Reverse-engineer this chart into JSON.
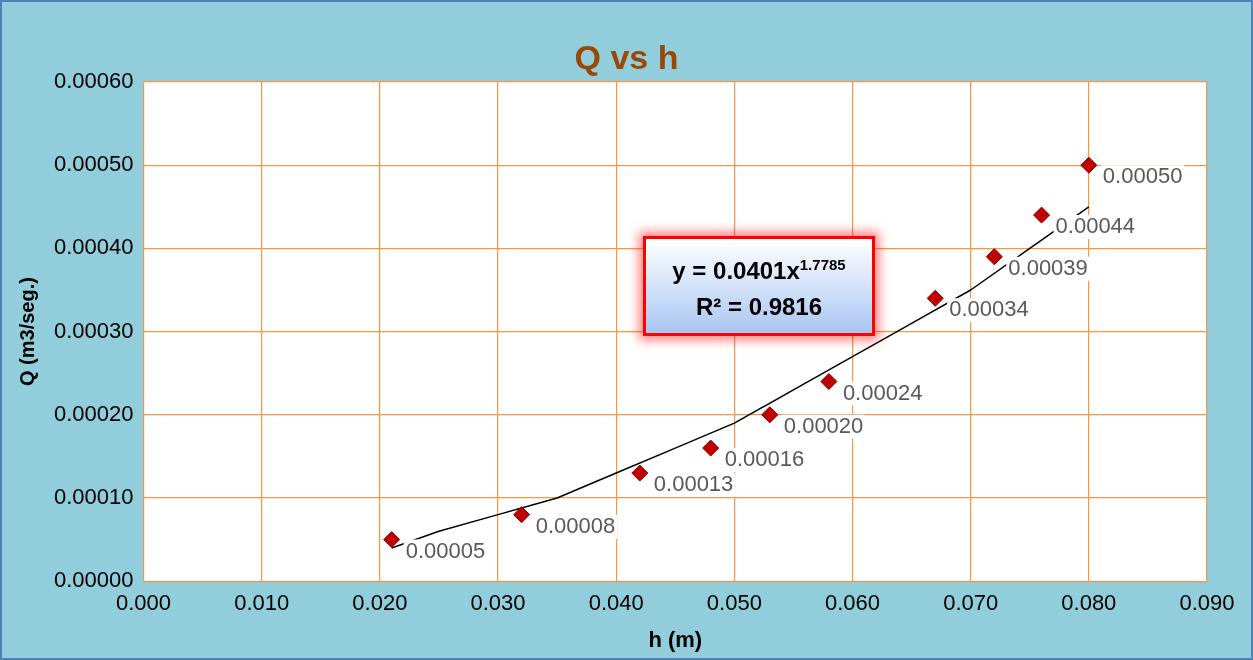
{
  "chart_data": {
    "type": "scatter",
    "title": "Q vs h",
    "xlabel": "h (m)",
    "ylabel": "Q (m3/seg.)",
    "series": [
      {
        "type": "scatter",
        "color": "#c00000",
        "marker": "diamond",
        "x": [
          0.021,
          0.032,
          0.042,
          0.048,
          0.053,
          0.058,
          0.067,
          0.072,
          0.076,
          0.08
        ],
        "values": [
          5e-05,
          8e-05,
          0.00013,
          0.00016,
          0.0002,
          0.00024,
          0.00034,
          0.00039,
          0.00044,
          0.0005
        ],
        "value_labels": [
          "0.00005",
          "0.00008",
          "0.00013",
          "0.00016",
          "0.00020",
          "0.00024",
          "0.00034",
          "0.00039",
          "0.00044",
          "0.00050"
        ]
      },
      {
        "type": "line",
        "color": "#000000",
        "marker": "none",
        "line_style": "solid",
        "x": [
          0.021,
          0.025,
          0.03,
          0.035,
          0.04,
          0.045,
          0.05,
          0.055,
          0.06,
          0.065,
          0.07,
          0.075,
          0.08
        ],
        "values": [
          4e-05,
          6e-05,
          8e-05,
          0.0001,
          0.00013,
          0.00016,
          0.00019,
          0.00023,
          0.00027,
          0.00031,
          0.00035,
          0.0004,
          0.00045
        ]
      }
    ],
    "annotations": [
      "y = 0.0401x$^{1.7785}$",
      "R² = 0.9816"
    ],
    "xlim": [
      0,
      0.09
    ],
    "ylim": [
      0,
      0.0006
    ],
    "xticks": [
      {
        "value": 0,
        "label": "0.000"
      },
      {
        "value": 0.01,
        "label": "0.010"
      },
      {
        "value": 0.02,
        "label": "0.020"
      },
      {
        "value": 0.03,
        "label": "0.030"
      },
      {
        "value": 0.04,
        "label": "0.040"
      },
      {
        "value": 0.05,
        "label": "0.050"
      },
      {
        "value": 0.06,
        "label": "0.060"
      },
      {
        "value": 0.07,
        "label": "0.070"
      },
      {
        "value": 0.08,
        "label": "0.080"
      },
      {
        "value": 0.09,
        "label": "0.090"
      }
    ],
    "yticks": [
      {
        "value": 0,
        "label": "0.00000"
      },
      {
        "value": 0.0001,
        "label": "0.00010"
      },
      {
        "value": 0.0002,
        "label": "0.00020"
      },
      {
        "value": 0.0003,
        "label": "0.00030"
      },
      {
        "value": 0.0004,
        "label": "0.00040"
      },
      {
        "value": 0.0005,
        "label": "0.00050"
      },
      {
        "value": 0.0006,
        "label": "0.00060"
      }
    ],
    "grid": true,
    "legend": false
  }
}
